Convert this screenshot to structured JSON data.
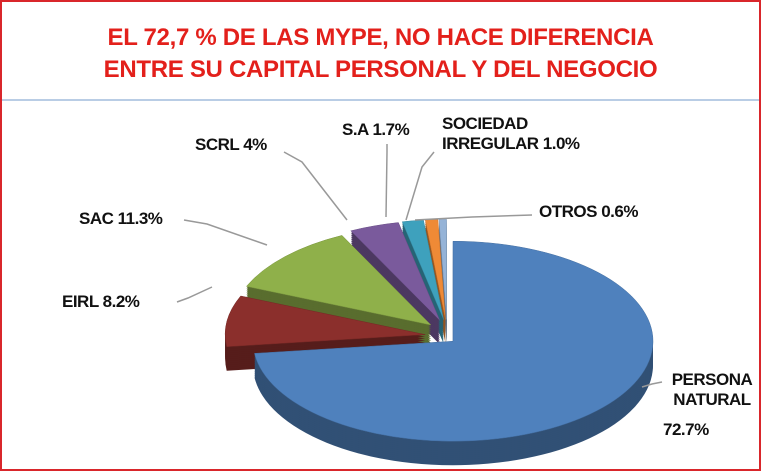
{
  "chart_data": {
    "type": "pie",
    "title_lines": [
      "EL 72,7 % DE LAS MYPE, NO HACE DIFERENCIA",
      "ENTRE SU CAPITAL PERSONAL Y DEL NEGOCIO"
    ],
    "categories": [
      "PERSONA NATURAL",
      "EIRL",
      "SAC",
      "SCRL",
      "S.A",
      "SOCIEDAD IRREGULAR",
      "OTROS"
    ],
    "values": [
      72.7,
      8.2,
      11.3,
      4,
      1.7,
      1.0,
      0.6
    ],
    "value_labels": [
      "72.7%",
      "8.2%",
      "11.3%",
      "4%",
      "1.7%",
      "1.0%",
      "0.6%"
    ],
    "colors": [
      "#4f81bd",
      "#8b2f2c",
      "#8fb04a",
      "#7a5a9c",
      "#3ea1bd",
      "#ef8a36",
      "#95b3d7"
    ]
  }
}
